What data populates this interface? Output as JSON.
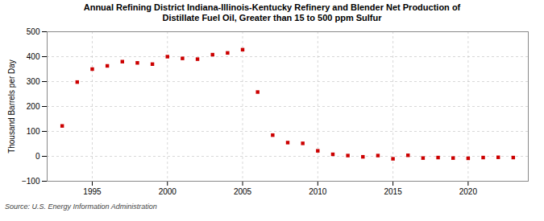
{
  "chart_data": {
    "type": "scatter",
    "title": "Annual Refining District Indiana-Illinois-Kentucky Refinery and Blender Net Production of\nDistillate Fuel Oil, Greater than 15 to 500 ppm Sulfur",
    "ylabel": "Thousand Barrels per Day",
    "source": "Source: U.S. Energy Information Administration",
    "x": [
      1993,
      1994,
      1995,
      1996,
      1997,
      1998,
      1999,
      2000,
      2001,
      2002,
      2003,
      2004,
      2005,
      2006,
      2007,
      2008,
      2009,
      2010,
      2011,
      2012,
      2013,
      2014,
      2015,
      2016,
      2017,
      2018,
      2019,
      2020,
      2021,
      2022,
      2023
    ],
    "values": [
      122,
      298,
      350,
      363,
      380,
      375,
      370,
      400,
      393,
      390,
      408,
      415,
      428,
      258,
      85,
      55,
      52,
      22,
      8,
      3,
      -2,
      3,
      -10,
      4,
      -7,
      -5,
      -7,
      -8,
      -5,
      -4,
      -5
    ],
    "color": "#cc0000",
    "marker": "square",
    "xlim": [
      1992,
      2024
    ],
    "xticks": [
      1995,
      2000,
      2005,
      2010,
      2015,
      2020
    ],
    "ylim": [
      -100,
      500
    ],
    "yticks": [
      -100,
      0,
      100,
      200,
      300,
      400,
      500
    ],
    "grid": true
  }
}
